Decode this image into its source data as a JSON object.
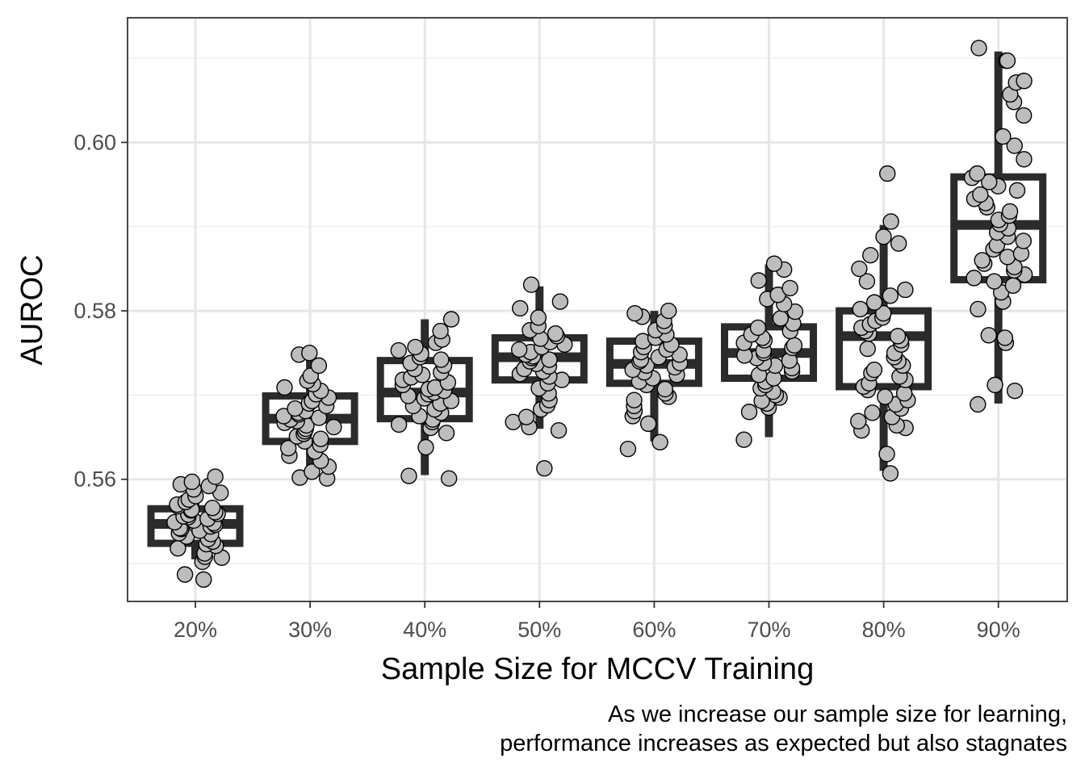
{
  "chart_data": {
    "type": "boxplot",
    "xlabel": "Sample Size for MCCV Training",
    "ylabel": "AUROC",
    "caption_lines": [
      "As we increase our sample size for learning,",
      "performance increases as expected but also stagnates"
    ],
    "categories": [
      "20%",
      "30%",
      "40%",
      "50%",
      "60%",
      "70%",
      "80%",
      "90%"
    ],
    "y_ticks": [
      0.56,
      0.58,
      0.6
    ],
    "ylim": [
      0.5455,
      0.6148
    ],
    "grid": true,
    "legend": "none",
    "colors": {
      "box": "#2b2b2b",
      "point_fill": "#bdbdbd",
      "point_stroke": "#000000",
      "grid_major": "#e6e6e6",
      "grid_minor": "#f0f0f0",
      "panel_border": "#333333"
    },
    "boxes": [
      {
        "category": "20%",
        "whisker_low": 0.5505,
        "q1": 0.5524,
        "median": 0.5547,
        "q3": 0.5565,
        "whisker_high": 0.5599
      },
      {
        "category": "30%",
        "whisker_low": 0.5605,
        "q1": 0.5645,
        "median": 0.5672,
        "q3": 0.5699,
        "whisker_high": 0.575
      },
      {
        "category": "40%",
        "whisker_low": 0.5605,
        "q1": 0.5672,
        "median": 0.5703,
        "q3": 0.5741,
        "whisker_high": 0.579
      },
      {
        "category": "50%",
        "whisker_low": 0.566,
        "q1": 0.5718,
        "median": 0.5745,
        "q3": 0.5768,
        "whisker_high": 0.5829
      },
      {
        "category": "60%",
        "whisker_low": 0.5645,
        "q1": 0.5714,
        "median": 0.5737,
        "q3": 0.5764,
        "whisker_high": 0.58
      },
      {
        "category": "70%",
        "whisker_low": 0.565,
        "q1": 0.572,
        "median": 0.575,
        "q3": 0.5781,
        "whisker_high": 0.5855
      },
      {
        "category": "80%",
        "whisker_low": 0.561,
        "q1": 0.571,
        "median": 0.577,
        "q3": 0.58,
        "whisker_high": 0.5902
      },
      {
        "category": "90%",
        "whisker_low": 0.569,
        "q1": 0.5837,
        "median": 0.5902,
        "q3": 0.5959,
        "whisker_high": 0.6108
      }
    ],
    "points": [
      {
        "category": "20%",
        "values": [
          0.5481,
          0.5487,
          0.5502,
          0.5507,
          0.5508,
          0.5512,
          0.5518,
          0.5521,
          0.5523,
          0.5526,
          0.5529,
          0.5532,
          0.5535,
          0.5536,
          0.5539,
          0.5541,
          0.5542,
          0.5544,
          0.5546,
          0.5548,
          0.5549,
          0.5551,
          0.5553,
          0.5555,
          0.5556,
          0.5558,
          0.5559,
          0.5561,
          0.5563,
          0.5564,
          0.5566,
          0.5568,
          0.557,
          0.5573,
          0.5576,
          0.558,
          0.5584,
          0.5588,
          0.5592,
          0.5594,
          0.5597,
          0.5603
        ]
      },
      {
        "category": "30%",
        "values": [
          0.5601,
          0.5602,
          0.5609,
          0.5615,
          0.5622,
          0.5628,
          0.5633,
          0.5637,
          0.5641,
          0.5645,
          0.5648,
          0.5651,
          0.5654,
          0.5657,
          0.566,
          0.5662,
          0.5664,
          0.5667,
          0.5669,
          0.5671,
          0.5673,
          0.5675,
          0.5677,
          0.5679,
          0.5681,
          0.5684,
          0.5687,
          0.569,
          0.5693,
          0.5697,
          0.5701,
          0.5705,
          0.5709,
          0.5713,
          0.5717,
          0.5723,
          0.5735,
          0.5748,
          0.575
        ]
      },
      {
        "category": "40%",
        "values": [
          0.5601,
          0.5604,
          0.5638,
          0.5655,
          0.5661,
          0.5665,
          0.5668,
          0.5671,
          0.5675,
          0.5679,
          0.5683,
          0.5687,
          0.569,
          0.5693,
          0.5696,
          0.5699,
          0.5701,
          0.5703,
          0.5705,
          0.5707,
          0.5709,
          0.5712,
          0.5715,
          0.5718,
          0.5721,
          0.5724,
          0.5727,
          0.5731,
          0.5735,
          0.5738,
          0.5742,
          0.5745,
          0.5749,
          0.5753,
          0.5757,
          0.5762,
          0.5766,
          0.5776,
          0.579
        ]
      },
      {
        "category": "50%",
        "values": [
          0.5613,
          0.5658,
          0.5662,
          0.5668,
          0.5674,
          0.5683,
          0.5688,
          0.5694,
          0.5702,
          0.5708,
          0.5714,
          0.5718,
          0.5722,
          0.5725,
          0.5728,
          0.5731,
          0.5734,
          0.5737,
          0.574,
          0.5742,
          0.5744,
          0.5746,
          0.5748,
          0.5751,
          0.5754,
          0.5757,
          0.576,
          0.5763,
          0.5767,
          0.577,
          0.5773,
          0.5777,
          0.5782,
          0.5792,
          0.5803,
          0.5811,
          0.5831
        ]
      },
      {
        "category": "60%",
        "values": [
          0.5636,
          0.5644,
          0.5666,
          0.5675,
          0.5681,
          0.5687,
          0.5694,
          0.5698,
          0.5702,
          0.5707,
          0.5712,
          0.5716,
          0.572,
          0.5724,
          0.5727,
          0.573,
          0.5733,
          0.5735,
          0.5738,
          0.574,
          0.5742,
          0.5745,
          0.5748,
          0.5751,
          0.5754,
          0.5757,
          0.576,
          0.5764,
          0.5768,
          0.5772,
          0.5777,
          0.5782,
          0.5788,
          0.5793,
          0.5797,
          0.58
        ]
      },
      {
        "category": "70%",
        "values": [
          0.5647,
          0.568,
          0.5685,
          0.569,
          0.5693,
          0.5697,
          0.57,
          0.5704,
          0.5708,
          0.5712,
          0.5716,
          0.572,
          0.5724,
          0.5728,
          0.5732,
          0.5735,
          0.5738,
          0.5741,
          0.5744,
          0.5747,
          0.575,
          0.5753,
          0.5756,
          0.5759,
          0.5762,
          0.5765,
          0.5768,
          0.5772,
          0.5776,
          0.578,
          0.5785,
          0.5791,
          0.5799,
          0.5808,
          0.5814,
          0.5819,
          0.5827,
          0.5836,
          0.5849,
          0.5856
        ]
      },
      {
        "category": "80%",
        "values": [
          0.5607,
          0.563,
          0.5658,
          0.5661,
          0.5664,
          0.5669,
          0.5674,
          0.5679,
          0.5684,
          0.5689,
          0.5694,
          0.5698,
          0.5702,
          0.5706,
          0.571,
          0.5714,
          0.5718,
          0.5722,
          0.5726,
          0.573,
          0.5735,
          0.574,
          0.5745,
          0.575,
          0.5755,
          0.576,
          0.5765,
          0.577,
          0.5773,
          0.5776,
          0.578,
          0.5784,
          0.5788,
          0.5792,
          0.5797,
          0.5802,
          0.581,
          0.5818,
          0.5825,
          0.5835,
          0.585,
          0.5866,
          0.588,
          0.5888,
          0.5906,
          0.5963
        ]
      },
      {
        "category": "90%",
        "values": [
          0.5689,
          0.5705,
          0.5712,
          0.5762,
          0.5768,
          0.5771,
          0.5802,
          0.5811,
          0.5822,
          0.583,
          0.5835,
          0.5839,
          0.5843,
          0.5848,
          0.5852,
          0.5856,
          0.586,
          0.5864,
          0.5868,
          0.5873,
          0.5878,
          0.5883,
          0.5888,
          0.5893,
          0.5898,
          0.5903,
          0.5908,
          0.5913,
          0.5918,
          0.5923,
          0.5928,
          0.5933,
          0.5938,
          0.5943,
          0.5948,
          0.5953,
          0.5958,
          0.5963,
          0.598,
          0.5996,
          0.6007,
          0.6032,
          0.6048,
          0.6057,
          0.6071,
          0.6073,
          0.6097,
          0.6097,
          0.6112
        ]
      }
    ]
  }
}
